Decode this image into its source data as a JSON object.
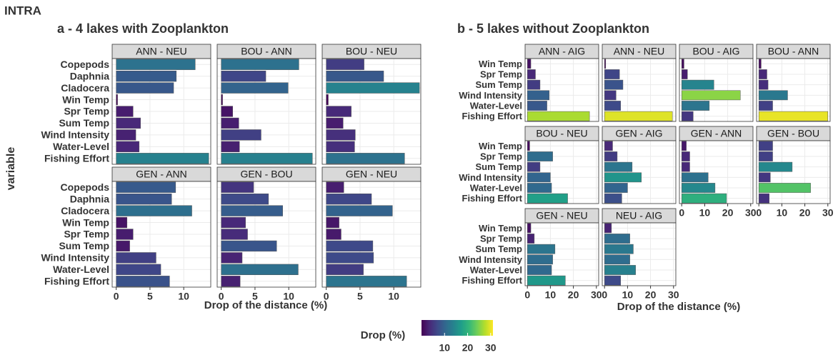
{
  "label": "INTRA",
  "y_label": "variable",
  "legend": {
    "title": "Drop (%)",
    "lim": [
      0,
      31
    ],
    "ticks": [
      10,
      20,
      30
    ],
    "colormap": [
      "#440154",
      "#482878",
      "#3e4989",
      "#31688e",
      "#26828e",
      "#1f9e89",
      "#35b779",
      "#6ece58",
      "#b5de2b",
      "#fde725"
    ]
  },
  "chart_data": [
    {
      "type": "bar",
      "orientation": "horizontal",
      "title": "a - 4 lakes with Zooplankton",
      "x_label": "Drop of the distance (%)",
      "categories": [
        "Copepods",
        "Daphnia",
        "Cladocera",
        "Win Temp",
        "Spr Temp",
        "Sum Temp",
        "Wind Intensity",
        "Water-Level",
        "Fishing Effort"
      ],
      "xlim": [
        -0.6,
        14.0
      ],
      "xticks": [
        0,
        5,
        10
      ],
      "grid": true,
      "ncol": 3,
      "series": [
        {
          "name": "ANN - NEU",
          "values": [
            11.7,
            8.9,
            8.5,
            0.2,
            2.5,
            3.6,
            2.9,
            3.4,
            13.7
          ]
        },
        {
          "name": "BOU - ANN",
          "values": [
            11.5,
            6.6,
            9.9,
            0.2,
            1.7,
            2.6,
            5.9,
            2.7,
            13.5
          ]
        },
        {
          "name": "BOU - NEU",
          "values": [
            5.6,
            8.5,
            13.8,
            0.3,
            3.7,
            2.5,
            4.3,
            4.2,
            11.6
          ]
        },
        {
          "name": "GEN - ANN",
          "values": [
            8.8,
            8.2,
            11.2,
            1.6,
            2.5,
            2.0,
            5.9,
            6.6,
            7.9
          ]
        },
        {
          "name": "GEN - BOU",
          "values": [
            4.8,
            7.0,
            9.1,
            3.6,
            3.9,
            8.2,
            3.1,
            11.4,
            2.8
          ]
        },
        {
          "name": "GEN - NEU",
          "values": [
            2.6,
            6.7,
            9.8,
            1.9,
            2.2,
            6.9,
            7.0,
            5.5,
            11.9
          ]
        }
      ]
    },
    {
      "type": "bar",
      "orientation": "horizontal",
      "title": "b - 5 lakes without Zooplankton",
      "x_label": "Drop of the distance (%)",
      "categories": [
        "Win Temp",
        "Spr Temp",
        "Sum Temp",
        "Wind Intensity",
        "Water-Level",
        "Fishing Effort"
      ],
      "xlim": [
        -1,
        31
      ],
      "xticks": [
        0,
        10,
        20,
        30
      ],
      "grid": true,
      "ncol": 4,
      "series": [
        {
          "name": "ANN - AIG",
          "values": [
            1.5,
            3.5,
            5.5,
            9.5,
            8.5,
            27
          ]
        },
        {
          "name": "ANN - NEU",
          "values": [
            0.5,
            6.5,
            8,
            5,
            7,
            29.5
          ]
        },
        {
          "name": "BOU - AIG",
          "values": [
            1,
            2.5,
            14,
            25.5,
            12,
            5
          ]
        },
        {
          "name": "BOU - ANN",
          "values": [
            1,
            3.5,
            4,
            12.5,
            6,
            30
          ]
        },
        {
          "name": "BOU - NEU",
          "values": [
            1,
            11,
            5.5,
            10,
            10.5,
            17.5
          ]
        },
        {
          "name": "GEN - AIG",
          "values": [
            3.5,
            5.5,
            12,
            16,
            10,
            7.5
          ]
        },
        {
          "name": "GEN - ANN",
          "values": [
            2,
            3.5,
            3.5,
            11.5,
            14.5,
            19.5
          ]
        },
        {
          "name": "GEN - BOU",
          "values": [
            6,
            6,
            14.5,
            5,
            22.5,
            4.5
          ]
        },
        {
          "name": "GEN - NEU",
          "values": [
            1.5,
            3,
            12,
            11,
            10.5,
            16.5
          ]
        },
        {
          "name": "NEU - AIG",
          "values": [
            3,
            11,
            12.5,
            11,
            13.5,
            7
          ]
        }
      ]
    }
  ]
}
